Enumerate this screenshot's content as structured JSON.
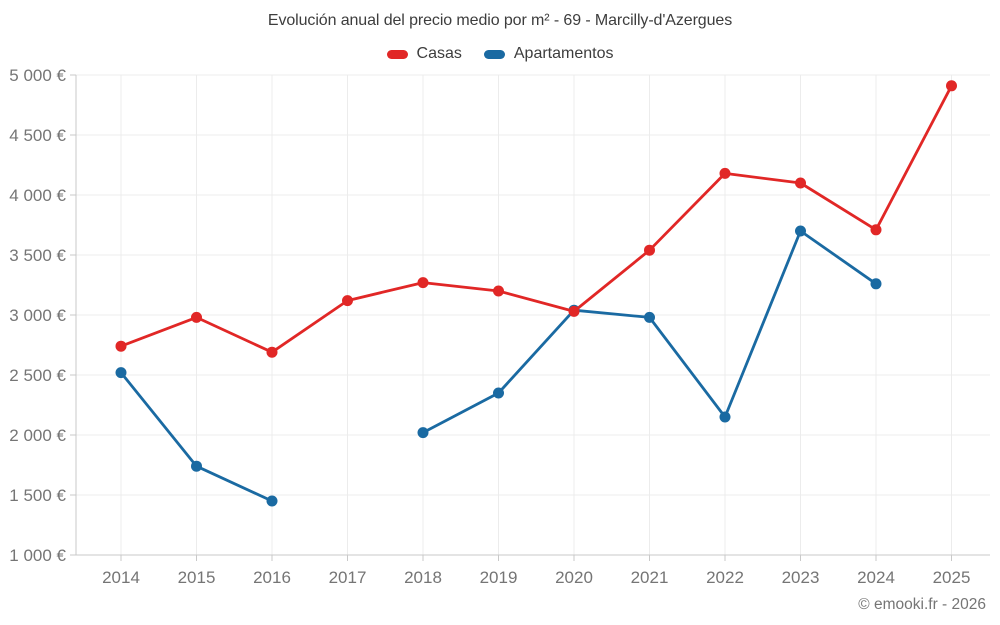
{
  "header": {
    "title": "Evolución anual del precio medio por m² - 69 - Marcilly-d'Azergues"
  },
  "footer": {
    "copyright": "© emooki.fr - 2026"
  },
  "chart_data": {
    "type": "line",
    "title": "Evolución anual del precio medio por m² - 69 - Marcilly-d'Azergues",
    "categories": [
      "2014",
      "2015",
      "2016",
      "2017",
      "2018",
      "2019",
      "2020",
      "2021",
      "2022",
      "2023",
      "2024",
      "2025"
    ],
    "series": [
      {
        "name": "Casas",
        "color": "#e12726",
        "values": [
          2740,
          2980,
          2690,
          3120,
          3270,
          3200,
          3030,
          3540,
          4180,
          4100,
          3710,
          4910
        ]
      },
      {
        "name": "Apartamentos",
        "color": "#1a6aa2",
        "values": [
          2520,
          1740,
          1450,
          null,
          2020,
          2350,
          3040,
          2980,
          2150,
          3700,
          3260,
          null
        ]
      }
    ],
    "y_axis": {
      "min": 1000,
      "max": 5000,
      "tick_step": 500,
      "tick_labels": [
        "1 000 €",
        "1 500 €",
        "2 000 €",
        "2 500 €",
        "3 000 €",
        "3 500 €",
        "4 000 €",
        "4 500 €",
        "5 000 €"
      ]
    },
    "x_axis": {
      "tick_labels": [
        "2014",
        "2015",
        "2016",
        "2017",
        "2018",
        "2019",
        "2020",
        "2021",
        "2022",
        "2023",
        "2024",
        "2025"
      ]
    },
    "legend_position": "top",
    "grid": true,
    "ylim": [
      1000,
      5000
    ],
    "unit": "€"
  },
  "colors": {
    "grid": "#ececec",
    "axis": "#c9c9c9",
    "tick_text": "#757575",
    "title_text": "#3d3d3d",
    "casas": "#e12726",
    "apartamentos": "#1a6aa2"
  }
}
